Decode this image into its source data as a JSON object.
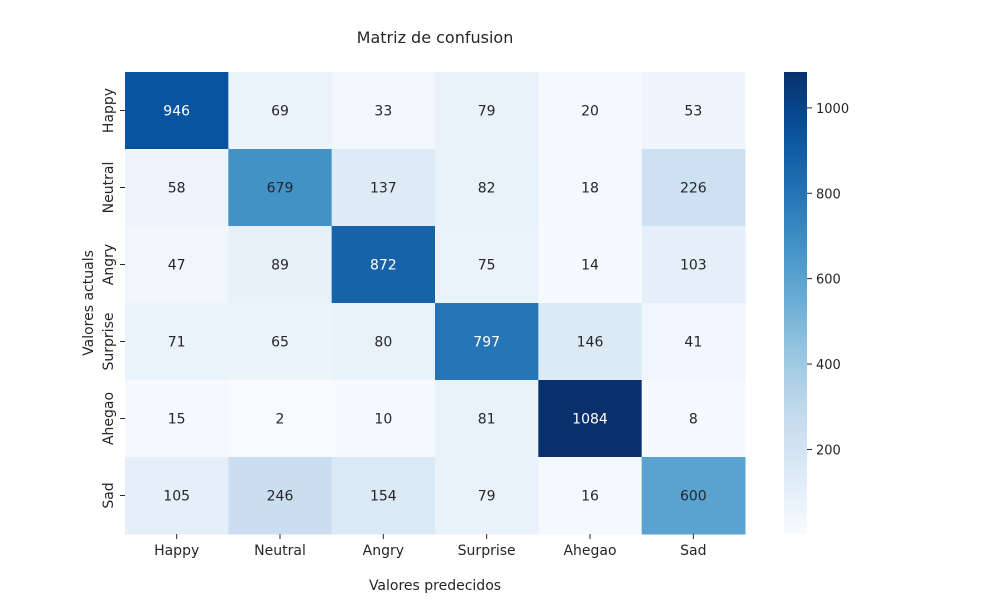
{
  "chart_data": {
    "type": "heatmap",
    "title": "Matriz de confusion",
    "xlabel": "Valores predecidos",
    "ylabel": "Valores actuals",
    "x_categories": [
      "Happy",
      "Neutral",
      "Angry",
      "Surprise",
      "Ahegao",
      "Sad"
    ],
    "y_categories": [
      "Happy",
      "Neutral",
      "Angry",
      "Surprise",
      "Ahegao",
      "Sad"
    ],
    "values": [
      [
        946,
        69,
        33,
        79,
        20,
        53
      ],
      [
        58,
        679,
        137,
        82,
        18,
        226
      ],
      [
        47,
        89,
        872,
        75,
        14,
        103
      ],
      [
        71,
        65,
        80,
        797,
        146,
        41
      ],
      [
        15,
        2,
        10,
        81,
        1084,
        8
      ],
      [
        105,
        246,
        154,
        79,
        16,
        600
      ]
    ],
    "colorbar": {
      "range": [
        2,
        1084
      ],
      "ticks": [
        200,
        400,
        600,
        800,
        1000
      ],
      "colormap": "Blues",
      "light_color": "#f7fbff",
      "dark_color": "#08306b"
    }
  }
}
